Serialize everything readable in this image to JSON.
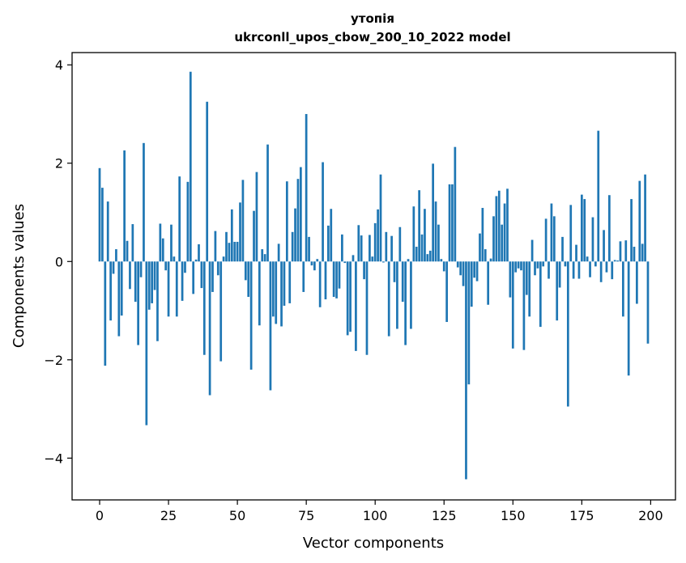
{
  "chart_data": {
    "type": "bar",
    "title": "утопія",
    "subtitle": "ukrconll_upos_cbow_200_10_2022 model",
    "xlabel": "Vector components",
    "ylabel": "Components values",
    "xlim": [
      -10,
      209
    ],
    "ylim": [
      -4.85,
      4.25
    ],
    "xticks": [
      0,
      25,
      50,
      75,
      100,
      125,
      150,
      175,
      200
    ],
    "yticks": [
      -4,
      -2,
      0,
      2,
      4
    ],
    "xtick_labels": [
      "0",
      "25",
      "50",
      "75",
      "100",
      "125",
      "150",
      "175",
      "200"
    ],
    "ytick_labels": [
      "−4",
      "−2",
      "0",
      "2",
      "4"
    ],
    "grid": false,
    "legend": "none",
    "color": "#1f77b4",
    "x_start": 0,
    "values": [
      1.9,
      1.5,
      -2.12,
      1.22,
      -1.2,
      -0.25,
      0.25,
      -1.52,
      -1.1,
      2.26,
      0.42,
      -0.56,
      0.76,
      -0.82,
      -1.7,
      -0.32,
      2.41,
      -3.33,
      -0.98,
      -0.85,
      -0.58,
      -1.62,
      0.77,
      0.47,
      -0.18,
      -1.12,
      0.75,
      0.1,
      -1.12,
      1.73,
      -0.8,
      -0.23,
      1.62,
      3.86,
      -0.66,
      0.04,
      0.35,
      -0.54,
      -1.9,
      3.25,
      -2.72,
      -0.62,
      0.62,
      -0.28,
      -2.03,
      0.1,
      0.6,
      0.38,
      1.06,
      0.4,
      0.4,
      1.2,
      1.66,
      -0.38,
      -0.72,
      -2.2,
      1.03,
      1.82,
      -1.3,
      0.25,
      0.15,
      2.38,
      -2.62,
      -1.12,
      -1.27,
      0.36,
      -1.32,
      -0.9,
      1.63,
      -0.85,
      0.6,
      1.08,
      1.68,
      1.92,
      -0.62,
      3.0,
      0.5,
      -0.08,
      -0.18,
      0.05,
      -0.93,
      2.02,
      -0.77,
      0.73,
      1.07,
      -0.72,
      -0.75,
      -0.55,
      0.55,
      -0.03,
      -1.5,
      -1.43,
      0.13,
      -1.82,
      0.74,
      0.53,
      -0.36,
      -1.9,
      0.54,
      0.1,
      0.78,
      1.06,
      1.77,
      -0.02,
      0.6,
      -1.52,
      0.52,
      -0.42,
      -1.37,
      0.7,
      -0.82,
      -1.7,
      0.05,
      -1.37,
      1.12,
      0.3,
      1.45,
      0.55,
      1.07,
      0.15,
      0.22,
      1.99,
      1.22,
      0.75,
      0.05,
      -0.2,
      -1.23,
      1.57,
      1.57,
      2.33,
      -0.12,
      -0.28,
      -0.5,
      -4.43,
      -2.5,
      -0.92,
      -0.33,
      -0.4,
      0.57,
      1.09,
      0.25,
      -0.88,
      0.06,
      0.92,
      1.33,
      1.44,
      0.75,
      1.18,
      1.48,
      -0.73,
      -1.77,
      -0.22,
      -0.14,
      -0.18,
      -1.8,
      -0.68,
      -1.12,
      0.44,
      -0.28,
      -0.14,
      -1.33,
      -0.1,
      0.87,
      -0.35,
      1.18,
      0.92,
      -1.2,
      -0.53,
      0.5,
      -0.1,
      -2.95,
      1.15,
      -0.35,
      0.34,
      -0.35,
      1.36,
      1.27,
      0.1,
      -0.32,
      0.9,
      -0.1,
      2.66,
      -0.42,
      0.64,
      -0.22,
      1.35,
      -0.36,
      0.03,
      0.02,
      0.41,
      -1.12,
      0.43,
      -2.32,
      1.27,
      0.3,
      -0.86,
      1.64,
      0.36,
      1.77,
      -1.67
    ]
  }
}
